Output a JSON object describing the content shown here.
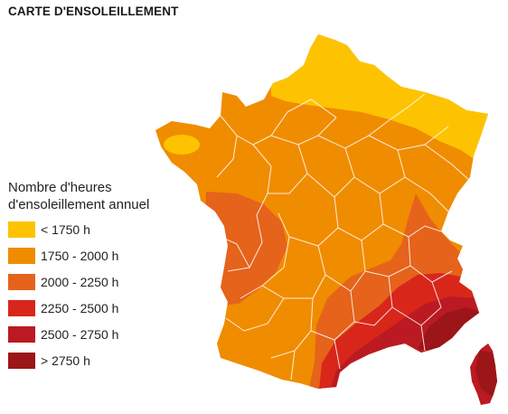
{
  "title": "CARTE D'ENSOLEILLEMENT",
  "legend": {
    "heading_line1": "Nombre d'heures",
    "heading_line2": "d'ensoleillement annuel",
    "items": [
      {
        "label": "< 1750 h",
        "color": "#fdc300"
      },
      {
        "label": "1750 - 2000 h",
        "color": "#f08c00"
      },
      {
        "label": "2000 - 2250 h",
        "color": "#e5631b"
      },
      {
        "label": "2250 - 2500 h",
        "color": "#d8261b"
      },
      {
        "label": "2500 - 2750 h",
        "color": "#bb1a22"
      },
      {
        "label": "> 2750 h",
        "color": "#9b1519"
      }
    ]
  }
}
